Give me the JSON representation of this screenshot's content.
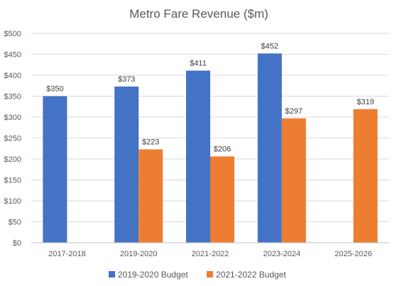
{
  "chart_data": {
    "type": "bar",
    "title": "Metro Fare Revenue ($m)",
    "xlabel": "",
    "ylabel": "",
    "categories": [
      "2017-2018",
      "2019-2020",
      "2021-2022",
      "2023-2024",
      "2025-2026"
    ],
    "series": [
      {
        "name": "2019-2020 Budget",
        "color": "#4472C4",
        "values": [
          350,
          373,
          411,
          452,
          null
        ]
      },
      {
        "name": "2021-2022 Budget",
        "color": "#ED7D31",
        "values": [
          null,
          223,
          206,
          297,
          319
        ]
      }
    ],
    "data_labels": [
      [
        "$350",
        "$373",
        "$411",
        "$452",
        null
      ],
      [
        null,
        "$223",
        "$206",
        "$297",
        "$319"
      ]
    ],
    "ylim": [
      0,
      500
    ],
    "yticks": [
      0,
      50,
      100,
      150,
      200,
      250,
      300,
      350,
      400,
      450,
      500
    ],
    "ytick_labels": [
      "$0",
      "$50",
      "$100",
      "$150",
      "$200",
      "$250",
      "$300",
      "$350",
      "$400",
      "$450",
      "$500"
    ],
    "grid": true,
    "legend": "bottom"
  }
}
